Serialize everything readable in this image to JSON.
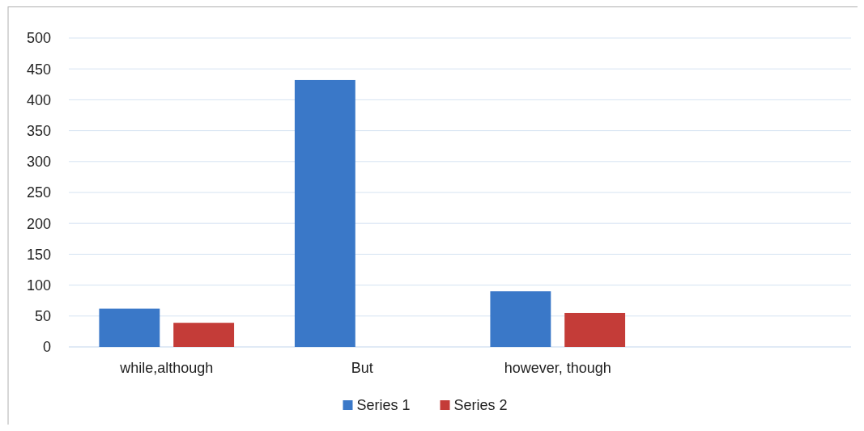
{
  "chart_data": {
    "type": "bar",
    "categories": [
      "while,although",
      "But",
      "however, though",
      null
    ],
    "series": [
      {
        "name": "Series 1",
        "color": "#3a78c8",
        "values": [
          62,
          432,
          90,
          null
        ]
      },
      {
        "name": "Series 2",
        "color": "#c43c38",
        "values": [
          39,
          null,
          55,
          null
        ]
      }
    ],
    "ylim": [
      0,
      500
    ],
    "yticks": [
      0,
      50,
      100,
      150,
      200,
      250,
      300,
      350,
      400,
      450,
      500
    ],
    "grid": "y",
    "legend": "bottom"
  }
}
